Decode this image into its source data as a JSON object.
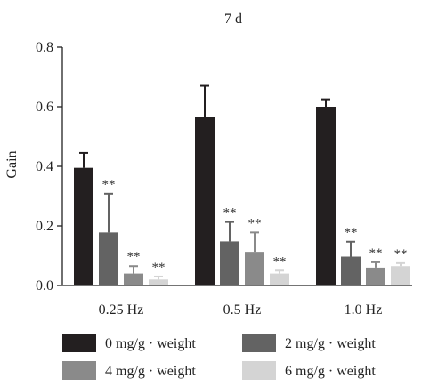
{
  "chart_data": {
    "type": "bar",
    "title": "7 d",
    "xlabel": "",
    "ylabel": "Gain",
    "ylim": [
      0,
      0.8
    ],
    "yticks": [
      "0.0",
      "0.2",
      "0.4",
      "0.6",
      "0.8"
    ],
    "categories": [
      "0.25 Hz",
      "0.5 Hz",
      "1.0 Hz"
    ],
    "series": [
      {
        "name": "0 mg/g · weight",
        "color": "#231f20",
        "values": [
          0.395,
          0.565,
          0.6
        ],
        "errors": [
          0.05,
          0.105,
          0.025
        ],
        "sig": [
          "",
          "",
          ""
        ]
      },
      {
        "name": "2 mg/g · weight",
        "color": "#636363",
        "values": [
          0.178,
          0.148,
          0.097
        ],
        "errors": [
          0.13,
          0.065,
          0.05
        ],
        "sig": [
          "**",
          "**",
          "**"
        ]
      },
      {
        "name": "4 mg/g · weight",
        "color": "#8a8a8a",
        "values": [
          0.04,
          0.113,
          0.06
        ],
        "errors": [
          0.025,
          0.065,
          0.018
        ],
        "sig": [
          "**",
          "**",
          "**"
        ]
      },
      {
        "name": "6 mg/g · weight",
        "color": "#d4d4d4",
        "values": [
          0.02,
          0.04,
          0.065
        ],
        "errors": [
          0.01,
          0.01,
          0.01
        ],
        "sig": [
          "**",
          "**",
          "**"
        ]
      }
    ],
    "legend_position": "bottom",
    "grid": false
  }
}
